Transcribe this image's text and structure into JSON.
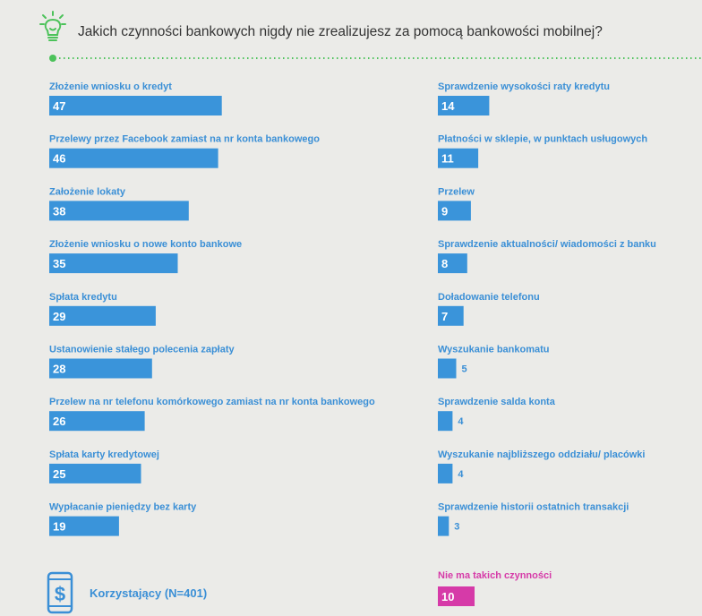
{
  "header": {
    "title": "Jakich czynności bankowych nigdy nie zrealizujesz za pomocą bankowości mobilnej?"
  },
  "footer": {
    "sample_label": "Korzystający (N=401)"
  },
  "colors": {
    "bar": "#3a94da",
    "label": "#3a8fd6",
    "pink": "#d63aa8",
    "green": "#4cc25a"
  },
  "icons": {
    "header": "lightbulb-icon",
    "footer": "smartphone-dollar-icon"
  },
  "chart_data": {
    "type": "bar",
    "title": "Jakich czynności bankowych nigdy nie zrealizujesz za pomocą bankowości mobilnej?",
    "columns": [
      {
        "categories": [
          "Złożenie wniosku o kredyt",
          "Przelewy przez Facebook zamiast na nr konta bankowego",
          "Założenie lokaty",
          "Złożenie wniosku o nowe konto bankowe",
          "Spłata kredytu",
          "Ustanowienie stałego polecenia zapłaty",
          "Przelew na nr telefonu komórkowego zamiast na nr konta bankowego",
          "Spłata karty kredytowej",
          "Wypłacanie pieniędzy bez karty"
        ],
        "values": [
          47,
          46,
          38,
          35,
          29,
          28,
          26,
          25,
          19
        ]
      },
      {
        "categories": [
          "Sprawdzenie wysokości raty kredytu",
          "Płatności w sklepie, w punktach usługowych",
          "Przelew",
          "Sprawdzenie aktualności/ wiadomości z banku",
          "Doładowanie telefonu",
          "Wyszukanie bankomatu",
          "Sprawdzenie salda konta",
          "Wyszukanie najbliższego oddziału/ placówki",
          "Sprawdzenie historii ostatnich transakcji"
        ],
        "values": [
          14,
          11,
          9,
          8,
          7,
          5,
          4,
          4,
          3
        ]
      }
    ],
    "extra": {
      "category": "Nie ma takich czynności",
      "value": 10
    }
  }
}
